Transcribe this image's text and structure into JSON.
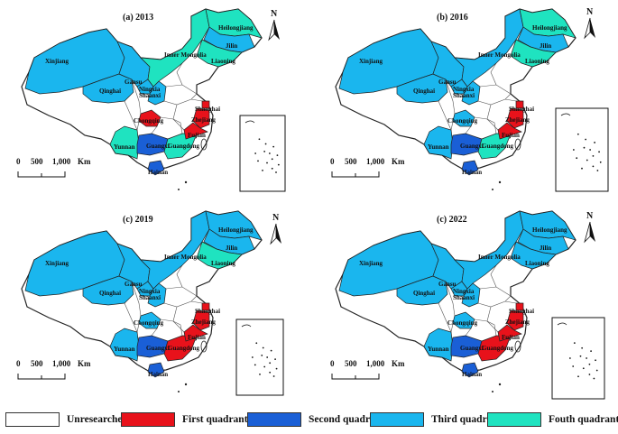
{
  "colors": {
    "unresearched": "#ffffff",
    "hh": "#e8121b",
    "lh": "#1a5fd6",
    "ll": "#1ab6ee",
    "hl": "#1fe3c0",
    "border": "#222222"
  },
  "panels": [
    {
      "title": "(a) 2013",
      "classes": {
        "Xinjiang": "ll",
        "Qinghai": "ll",
        "Gansu": "ll",
        "Ningxia": "ll",
        "Shaanxi": "ll",
        "Inner Mongolia": "hl",
        "Heilongjiang": "hl",
        "Jilin": "ll",
        "Liaoning": "hl",
        "Yunnan": "hl",
        "Guangxi": "lh",
        "Guangdong": "hl",
        "Hainan": "lh",
        "Chongqing": "hh",
        "Shanghai": "hh",
        "Zhejiang": "hh",
        "Fujian": "hh"
      }
    },
    {
      "title": "(b) 2016",
      "classes": {
        "Xinjiang": "ll",
        "Qinghai": "ll",
        "Gansu": "ll",
        "Ningxia": "ll",
        "Shaanxi": "ll",
        "Inner Mongolia": "ll",
        "Heilongjiang": "hl",
        "Jilin": "ll",
        "Liaoning": "hl",
        "Yunnan": "ll",
        "Guangxi": "lh",
        "Guangdong": "hl",
        "Hainan": "lh",
        "Chongqing": "ll",
        "Shanghai": "hh",
        "Zhejiang": "hh",
        "Fujian": "hh"
      }
    },
    {
      "title": "(c) 2019",
      "classes": {
        "Xinjiang": "ll",
        "Qinghai": "ll",
        "Gansu": "ll",
        "Ningxia": "ll",
        "Shaanxi": "ll",
        "Inner Mongolia": "ll",
        "Heilongjiang": "ll",
        "Jilin": "ll",
        "Liaoning": "hl",
        "Yunnan": "ll",
        "Guangxi": "lh",
        "Guangdong": "hh",
        "Hainan": "lh",
        "Chongqing": "ll",
        "Shanghai": "hh",
        "Zhejiang": "hh",
        "Fujian": "hh"
      }
    },
    {
      "title": "(c) 2022",
      "classes": {
        "Xinjiang": "ll",
        "Qinghai": "ll",
        "Gansu": "ll",
        "Ningxia": "ll",
        "Shaanxi": "ll",
        "Inner Mongolia": "ll",
        "Heilongjiang": "ll",
        "Jilin": "ll",
        "Liaoning": "ll",
        "Yunnan": "ll",
        "Guangxi": "lh",
        "Guangdong": "hh",
        "Hainan": "lh",
        "Chongqing": "ll",
        "Shanghai": "hh",
        "Zhejiang": "hh",
        "Fujian": "hh"
      }
    }
  ],
  "provinces": [
    "Xinjiang",
    "Qinghai",
    "Gansu",
    "Ningxia",
    "Shaanxi",
    "Inner Mongolia",
    "Heilongjiang",
    "Jilin",
    "Liaoning",
    "Yunnan",
    "Guangxi",
    "Guangdong",
    "Hainan",
    "Chongqing",
    "Shanghai",
    "Zhejiang",
    "Fujian"
  ],
  "north_label": "N",
  "scale_labels": [
    "0",
    "500",
    "1,000",
    "Km"
  ],
  "legend": [
    {
      "key": "unresearched",
      "label": "Unresearched"
    },
    {
      "key": "hh",
      "label": "First quadrant(H-H)"
    },
    {
      "key": "lh",
      "label": "Second quadrant(L-H)"
    },
    {
      "key": "ll",
      "label": "Third quadrant(L-L)"
    },
    {
      "key": "hl",
      "label": "Fouth quadrant(H-L)"
    }
  ]
}
